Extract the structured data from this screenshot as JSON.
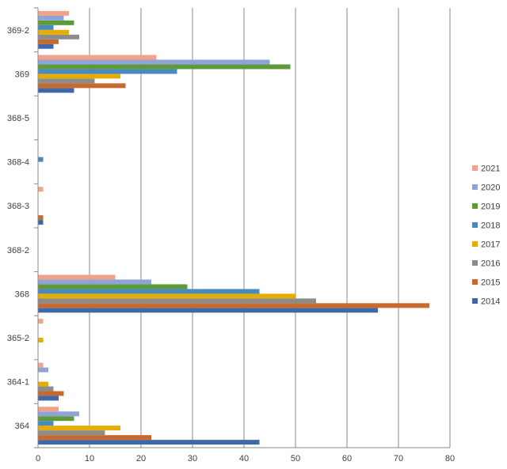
{
  "chart_data": {
    "type": "bar",
    "orientation": "horizontal",
    "title": "",
    "xlabel": "",
    "ylabel": "",
    "xlim": [
      0,
      80
    ],
    "x_ticks": [
      0,
      10,
      20,
      30,
      40,
      50,
      60,
      70,
      80
    ],
    "grid": "vertical",
    "legend_position": "right",
    "categories": [
      "364",
      "364-1",
      "365-2",
      "368",
      "368-2",
      "368-3",
      "368-4",
      "368-5",
      "369",
      "369-2"
    ],
    "series": [
      {
        "name": "2014",
        "color": "#3F68A8",
        "values": [
          43,
          4,
          0,
          66,
          0,
          1,
          0,
          0,
          7,
          3
        ]
      },
      {
        "name": "2015",
        "color": "#C8692E",
        "values": [
          22,
          5,
          0,
          76,
          0,
          1,
          0,
          0,
          17,
          4
        ]
      },
      {
        "name": "2016",
        "color": "#8C8C8C",
        "values": [
          13,
          3,
          0,
          54,
          0,
          0,
          0,
          0,
          11,
          8
        ]
      },
      {
        "name": "2017",
        "color": "#E6AC00",
        "values": [
          16,
          2,
          1,
          50,
          0,
          0,
          0,
          0,
          16,
          6
        ]
      },
      {
        "name": "2018",
        "color": "#4A88C0",
        "values": [
          3,
          0,
          0,
          43,
          0,
          0,
          1,
          0,
          27,
          3
        ]
      },
      {
        "name": "2019",
        "color": "#5C9A3C",
        "values": [
          7,
          0,
          0,
          29,
          0,
          0,
          0,
          0,
          49,
          7
        ]
      },
      {
        "name": "2020",
        "color": "#8FA4D6",
        "values": [
          8,
          2,
          0,
          22,
          0,
          0,
          0,
          0,
          45,
          5
        ]
      },
      {
        "name": "2021",
        "color": "#F0A38A",
        "values": [
          4,
          1,
          1,
          15,
          0,
          1,
          0,
          0,
          23,
          6
        ]
      }
    ]
  }
}
